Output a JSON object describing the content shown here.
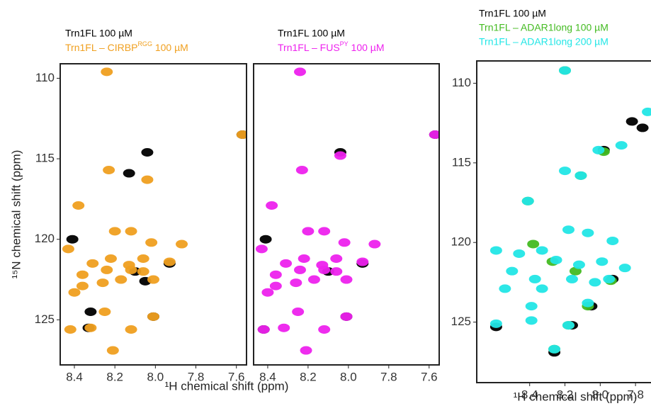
{
  "chart_data": [
    {
      "type": "scatter",
      "ylabel": "¹⁵N chemical shift (ppm)",
      "xlabel": "¹H chemical shift (ppm)",
      "xlim": [
        8.47,
        7.55
      ],
      "ylim": [
        109.1,
        127.8
      ],
      "xticks": [
        8.4,
        8.2,
        {
          "value": 8,
          "label": "8.0"
        },
        7.8,
        7.6
      ],
      "yticks": [
        110,
        115,
        120,
        125
      ],
      "series": [
        {
          "name": "Trn1FL 100 µM",
          "color": "#000000",
          "x": [
            8.04,
            8.13,
            8.41,
            8.33,
            8.1,
            8.05,
            7.93,
            7.57,
            8.01,
            8.32
          ],
          "y": [
            114.6,
            115.9,
            120.0,
            125.5,
            122.0,
            122.6,
            121.5,
            113.5,
            124.8,
            124.5
          ]
        },
        {
          "name": [
            "Trn1FL – CIRBP",
            "RGG",
            " 100 µM"
          ],
          "color": "#f0a020",
          "x": [
            8.24,
            8.23,
            8.04,
            8.38,
            8.2,
            8.12,
            8.02,
            7.87,
            8.43,
            8.31,
            8.22,
            8.13,
            8.06,
            7.93,
            8.36,
            8.24,
            8.06,
            8.01,
            8.36,
            8.26,
            8.17,
            8.4,
            8.12,
            8.25,
            8.01,
            8.42,
            8.32,
            8.12,
            8.21,
            7.57
          ],
          "y": [
            109.6,
            115.7,
            116.3,
            117.9,
            119.5,
            119.5,
            120.2,
            120.3,
            120.6,
            121.5,
            121.2,
            121.6,
            121.2,
            121.4,
            122.2,
            121.9,
            122.0,
            122.5,
            122.9,
            122.7,
            122.5,
            123.3,
            121.9,
            124.5,
            124.8,
            125.6,
            125.5,
            125.6,
            126.9,
            113.5
          ]
        }
      ]
    },
    {
      "type": "scatter",
      "xlim": [
        8.47,
        7.55
      ],
      "ylim": [
        109.1,
        127.8
      ],
      "xticks": [
        8.4,
        8.2,
        {
          "value": 8,
          "label": "8.0"
        },
        7.8,
        7.6
      ],
      "series": [
        {
          "name": "Trn1FL 100 µM",
          "color": "#000000",
          "x": [
            8.04,
            8.41,
            8.42,
            7.93,
            7.57,
            8.1,
            8.01
          ],
          "y": [
            114.6,
            120.0,
            125.6,
            121.5,
            113.5,
            122.0,
            124.8
          ]
        },
        {
          "name": [
            "Trn1FL – FUS",
            "PY",
            " 100 µM"
          ],
          "color": "#ee22ee",
          "x": [
            8.24,
            8.23,
            8.04,
            8.38,
            8.2,
            8.12,
            8.02,
            7.87,
            8.43,
            8.31,
            8.22,
            8.13,
            8.06,
            7.93,
            8.36,
            8.24,
            8.06,
            8.01,
            8.36,
            8.26,
            8.17,
            8.4,
            8.12,
            8.25,
            8.01,
            8.42,
            8.32,
            8.12,
            8.21,
            7.57
          ],
          "y": [
            109.6,
            115.7,
            114.8,
            117.9,
            119.5,
            119.5,
            120.2,
            120.3,
            120.6,
            121.5,
            121.2,
            121.6,
            121.2,
            121.4,
            122.2,
            121.9,
            122.0,
            122.5,
            122.9,
            122.7,
            122.5,
            123.3,
            121.9,
            124.5,
            124.8,
            125.6,
            125.5,
            125.6,
            126.9,
            113.5
          ]
        }
      ]
    },
    {
      "type": "scatter",
      "xlabel": "¹H chemical shift (ppm)",
      "xlim": [
        8.7,
        7.66
      ],
      "ylim": [
        108.6,
        128.8
      ],
      "xticks": [
        8.4,
        8.2,
        {
          "value": 8,
          "label": "8.0"
        },
        7.8
      ],
      "yticks": [
        110,
        115,
        120,
        125
      ],
      "series": [
        {
          "name": "Trn1FL 100 µM",
          "color": "#000000",
          "x": [
            7.98,
            7.93,
            8.05,
            7.82,
            7.76,
            8.26,
            8.16,
            8.59
          ],
          "y": [
            114.2,
            122.3,
            124.0,
            112.4,
            112.8,
            126.9,
            125.2,
            125.3
          ]
        },
        {
          "name": "Trn1FL – ADAR1long 100 µM",
          "color": "#44bb22",
          "x": [
            8.2,
            7.98,
            8.11,
            8.41,
            8.38,
            8.27,
            8.14,
            7.94,
            8.07,
            8.18,
            8.26
          ],
          "y": [
            109.2,
            114.3,
            115.8,
            117.4,
            120.1,
            121.2,
            121.8,
            122.4,
            124.0,
            125.2,
            126.7
          ]
        },
        {
          "name": "Trn1FL – ADAR1long 200 µM",
          "color": "#22e6e6",
          "x": [
            8.2,
            7.73,
            7.88,
            8.01,
            8.2,
            8.11,
            8.41,
            8.18,
            8.07,
            7.93,
            8.59,
            8.46,
            8.33,
            8.25,
            8.12,
            7.99,
            8.5,
            8.37,
            8.16,
            8.03,
            8.54,
            8.33,
            8.39,
            8.07,
            8.59,
            8.39,
            8.18,
            8.26,
            7.86,
            7.95
          ],
          "y": [
            109.2,
            111.8,
            113.9,
            114.2,
            115.5,
            115.8,
            117.4,
            119.2,
            119.4,
            119.9,
            120.5,
            120.7,
            120.5,
            121.1,
            121.4,
            121.2,
            121.8,
            122.3,
            122.3,
            122.5,
            122.9,
            122.9,
            124.0,
            123.8,
            125.1,
            124.9,
            125.2,
            126.7,
            121.6,
            122.3
          ]
        }
      ]
    }
  ]
}
